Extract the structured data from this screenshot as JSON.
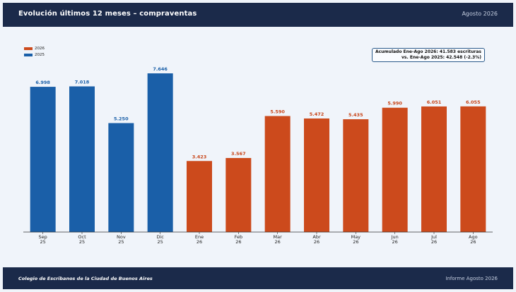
{
  "header": {
    "title": "Evolución últimos 12 meses – compraventas",
    "date": "Agosto 2026"
  },
  "footer": {
    "organization": "Colegio de Escribanos de la Ciudad de Buenos Aires",
    "report": "Informe Agosto 2026"
  },
  "annotation": {
    "line1": "Acumulado Ene-Ago 2026: 41.583 escrituras",
    "line2": "vs. Ene-Ago 2025: 42.548 (-2.3%)"
  },
  "colors": {
    "series_2025": "#1a5fa8",
    "series_2026": "#cc4a1c",
    "label_2025": "#1a5fa8",
    "label_2026": "#c8461a"
  },
  "chart_data": {
    "type": "bar",
    "title": "",
    "xlabel": "",
    "ylabel": "",
    "legend": {
      "placement": "top-left",
      "entries": [
        "2026",
        "2025"
      ]
    },
    "grid": false,
    "ylim": [
      0,
      8500
    ],
    "categories": [
      {
        "month": "Sep",
        "year": "25"
      },
      {
        "month": "Oct",
        "year": "25"
      },
      {
        "month": "Nov",
        "year": "25"
      },
      {
        "month": "Dic",
        "year": "25"
      },
      {
        "month": "Ene",
        "year": "26"
      },
      {
        "month": "Feb",
        "year": "26"
      },
      {
        "month": "Mar",
        "year": "26"
      },
      {
        "month": "Abr",
        "year": "26"
      },
      {
        "month": "May",
        "year": "26"
      },
      {
        "month": "Jun",
        "year": "26"
      },
      {
        "month": "Jul",
        "year": "26"
      },
      {
        "month": "Ago",
        "year": "26"
      }
    ],
    "values": [
      6998,
      7018,
      5250,
      7646,
      3423,
      3567,
      5590,
      5472,
      5435,
      5990,
      6051,
      6055
    ],
    "labels": [
      "6.998",
      "7.018",
      "5.250",
      "7.646",
      "3.423",
      "3.567",
      "5.590",
      "5.472",
      "5.435",
      "5.990",
      "6.051",
      "6.055"
    ],
    "series_of_bar": [
      "2025",
      "2025",
      "2025",
      "2025",
      "2026",
      "2026",
      "2026",
      "2026",
      "2026",
      "2026",
      "2026",
      "2026"
    ]
  }
}
